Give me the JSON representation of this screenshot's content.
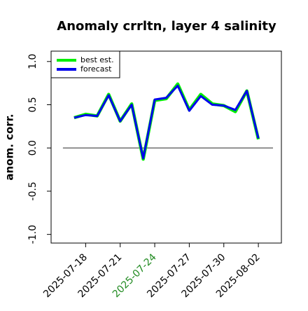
{
  "chart_data": {
    "type": "line",
    "title": "Anomaly crrltn, layer 4 salinity",
    "y_label": "anom. corr.",
    "x": [
      "2025-07-17",
      "2025-07-18",
      "2025-07-19",
      "2025-07-20",
      "2025-07-21",
      "2025-07-22",
      "2025-07-23",
      "2025-07-24",
      "2025-07-25",
      "2025-07-26",
      "2025-07-27",
      "2025-07-28",
      "2025-07-29",
      "2025-07-30",
      "2025-07-31",
      "2025-08-01",
      "2025-08-02"
    ],
    "series": [
      {
        "name": "best est.",
        "color": "#00ee00",
        "values": [
          0.35,
          0.39,
          0.37,
          0.62,
          0.31,
          0.51,
          -0.13,
          0.55,
          0.57,
          0.74,
          0.44,
          0.62,
          0.51,
          0.49,
          0.42,
          0.66,
          0.1
        ]
      },
      {
        "name": "forecast",
        "color": "#0000ee",
        "values": [
          0.35,
          0.38,
          0.37,
          0.61,
          0.31,
          0.5,
          -0.12,
          0.56,
          0.58,
          0.72,
          0.43,
          0.6,
          0.5,
          0.49,
          0.44,
          0.66,
          0.11
        ]
      }
    ],
    "xlim": [
      "2025-07-15",
      "2025-08-04"
    ],
    "xticks": [
      "2025-07-18",
      "2025-07-21",
      "2025-07-24",
      "2025-07-27",
      "2025-07-30",
      "2025-08-02"
    ],
    "highlight_tick_color": "#228b22",
    "highlight_tick": "2025-07-24",
    "ylim": [
      -1.1,
      1.12
    ],
    "yticks": [
      -1.0,
      -0.5,
      0.0,
      0.5,
      1.0
    ],
    "ytick_labels": [
      "-1.0",
      "-0.5",
      "0.0",
      "0.5",
      "1.0"
    ],
    "hline": 0,
    "legend": "top-left"
  }
}
